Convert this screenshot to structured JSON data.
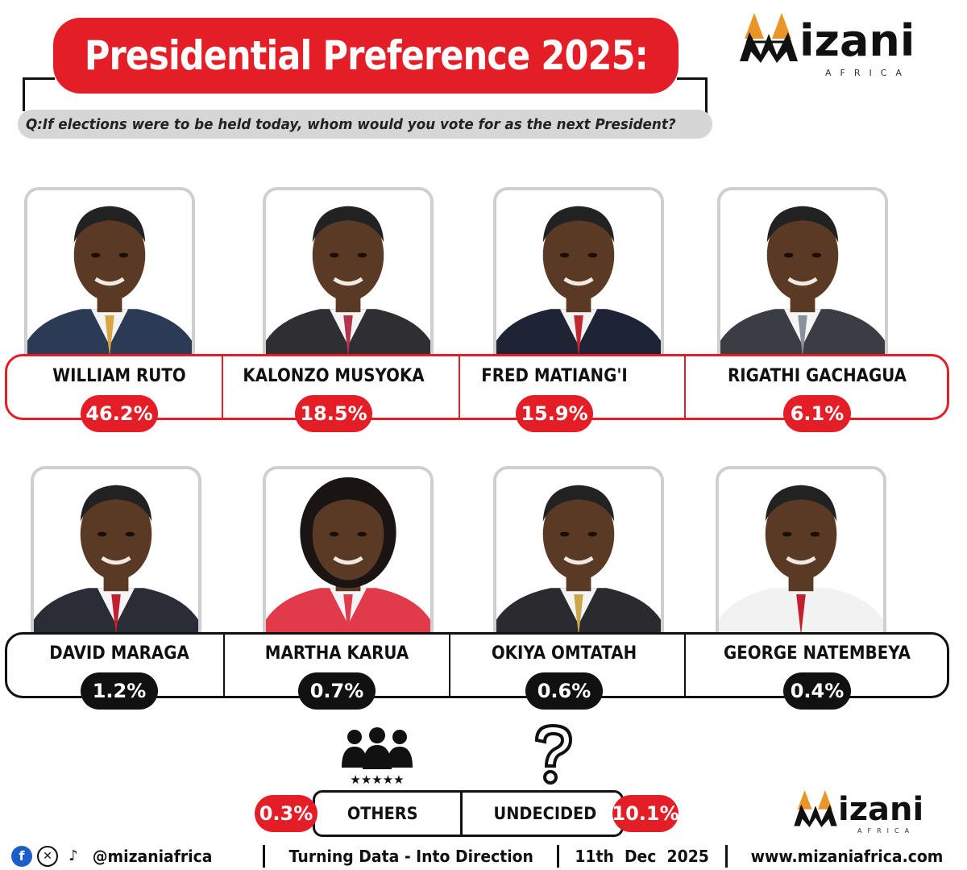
{
  "header": {
    "title": "Presidential Preference 2025:",
    "question": "Q:If elections were to be held today, whom would you vote for as the next President?"
  },
  "logo": {
    "word": "izani",
    "sub": "AFRICA"
  },
  "colors": {
    "accent_red": "#e41e26",
    "dark": "#111111",
    "question_bg": "#d6d6d6"
  },
  "chart_data": {
    "type": "bar",
    "categories": [
      "WILLIAM RUTO",
      "KALONZO MUSYOKA",
      "FRED MATIANG'I",
      "RIGATHI GACHAGUA",
      "DAVID MARAGA",
      "MARTHA KARUA",
      "OKIYA OMTATAH",
      "GEORGE NATEMBEYA",
      "OTHERS",
      "UNDECIDED"
    ],
    "values": [
      46.2,
      18.5,
      15.9,
      6.1,
      1.2,
      0.7,
      0.6,
      0.4,
      0.3,
      10.1
    ],
    "labels": [
      "46.2%",
      "18.5%",
      "15.9%",
      "6.1%",
      "1.2%",
      "0.7%",
      "0.6%",
      "0.4%",
      "0.3%",
      "10.1%"
    ],
    "title": "Presidential Preference 2025:",
    "xlabel": "",
    "ylabel": ""
  },
  "candidates_top": [
    {
      "name": "WILLIAM RUTO",
      "pct": "46.2%",
      "suit": "#2b3a55",
      "tie": "#d9a441"
    },
    {
      "name": "KALONZO MUSYOKA",
      "pct": "18.5%",
      "suit": "#2e2e33",
      "tie": "#b1344a"
    },
    {
      "name": "FRED MATIANG'I",
      "pct": "15.9%",
      "suit": "#1e2436",
      "tie": "#c0282e"
    },
    {
      "name": "RIGATHI GACHAGUA",
      "pct": "6.1%",
      "suit": "#3b3d44",
      "tie": "#8a8f99"
    }
  ],
  "candidates_bottom": [
    {
      "name": "DAVID MARAGA",
      "pct": "1.2%",
      "suit": "#2a2c36",
      "tie": "#c3202f"
    },
    {
      "name": "MARTHA KARUA",
      "pct": "0.7%",
      "suit": "#e13a4b",
      "tie": "#e13a4b"
    },
    {
      "name": "OKIYA OMTATAH",
      "pct": "0.6%",
      "suit": "#2b2b2f",
      "tie": "#c9a648"
    },
    {
      "name": "GEORGE NATEMBEYA",
      "pct": "0.4%",
      "suit": "#f2f2f2",
      "tie": "#c3202f"
    }
  ],
  "others": {
    "label": "OTHERS",
    "pct": "0.3%",
    "icon": "group-icon"
  },
  "undecided": {
    "label": "UNDECIDED",
    "pct": "10.1%",
    "icon": "question-mark-icon"
  },
  "footer": {
    "handle": "@mizaniafrica",
    "tagline": "Turning Data - Into Direction",
    "date": "11th  Dec  2025",
    "website": "www.mizaniafrica.com",
    "icons": [
      "facebook-icon",
      "x-icon",
      "tiktok-icon"
    ]
  }
}
